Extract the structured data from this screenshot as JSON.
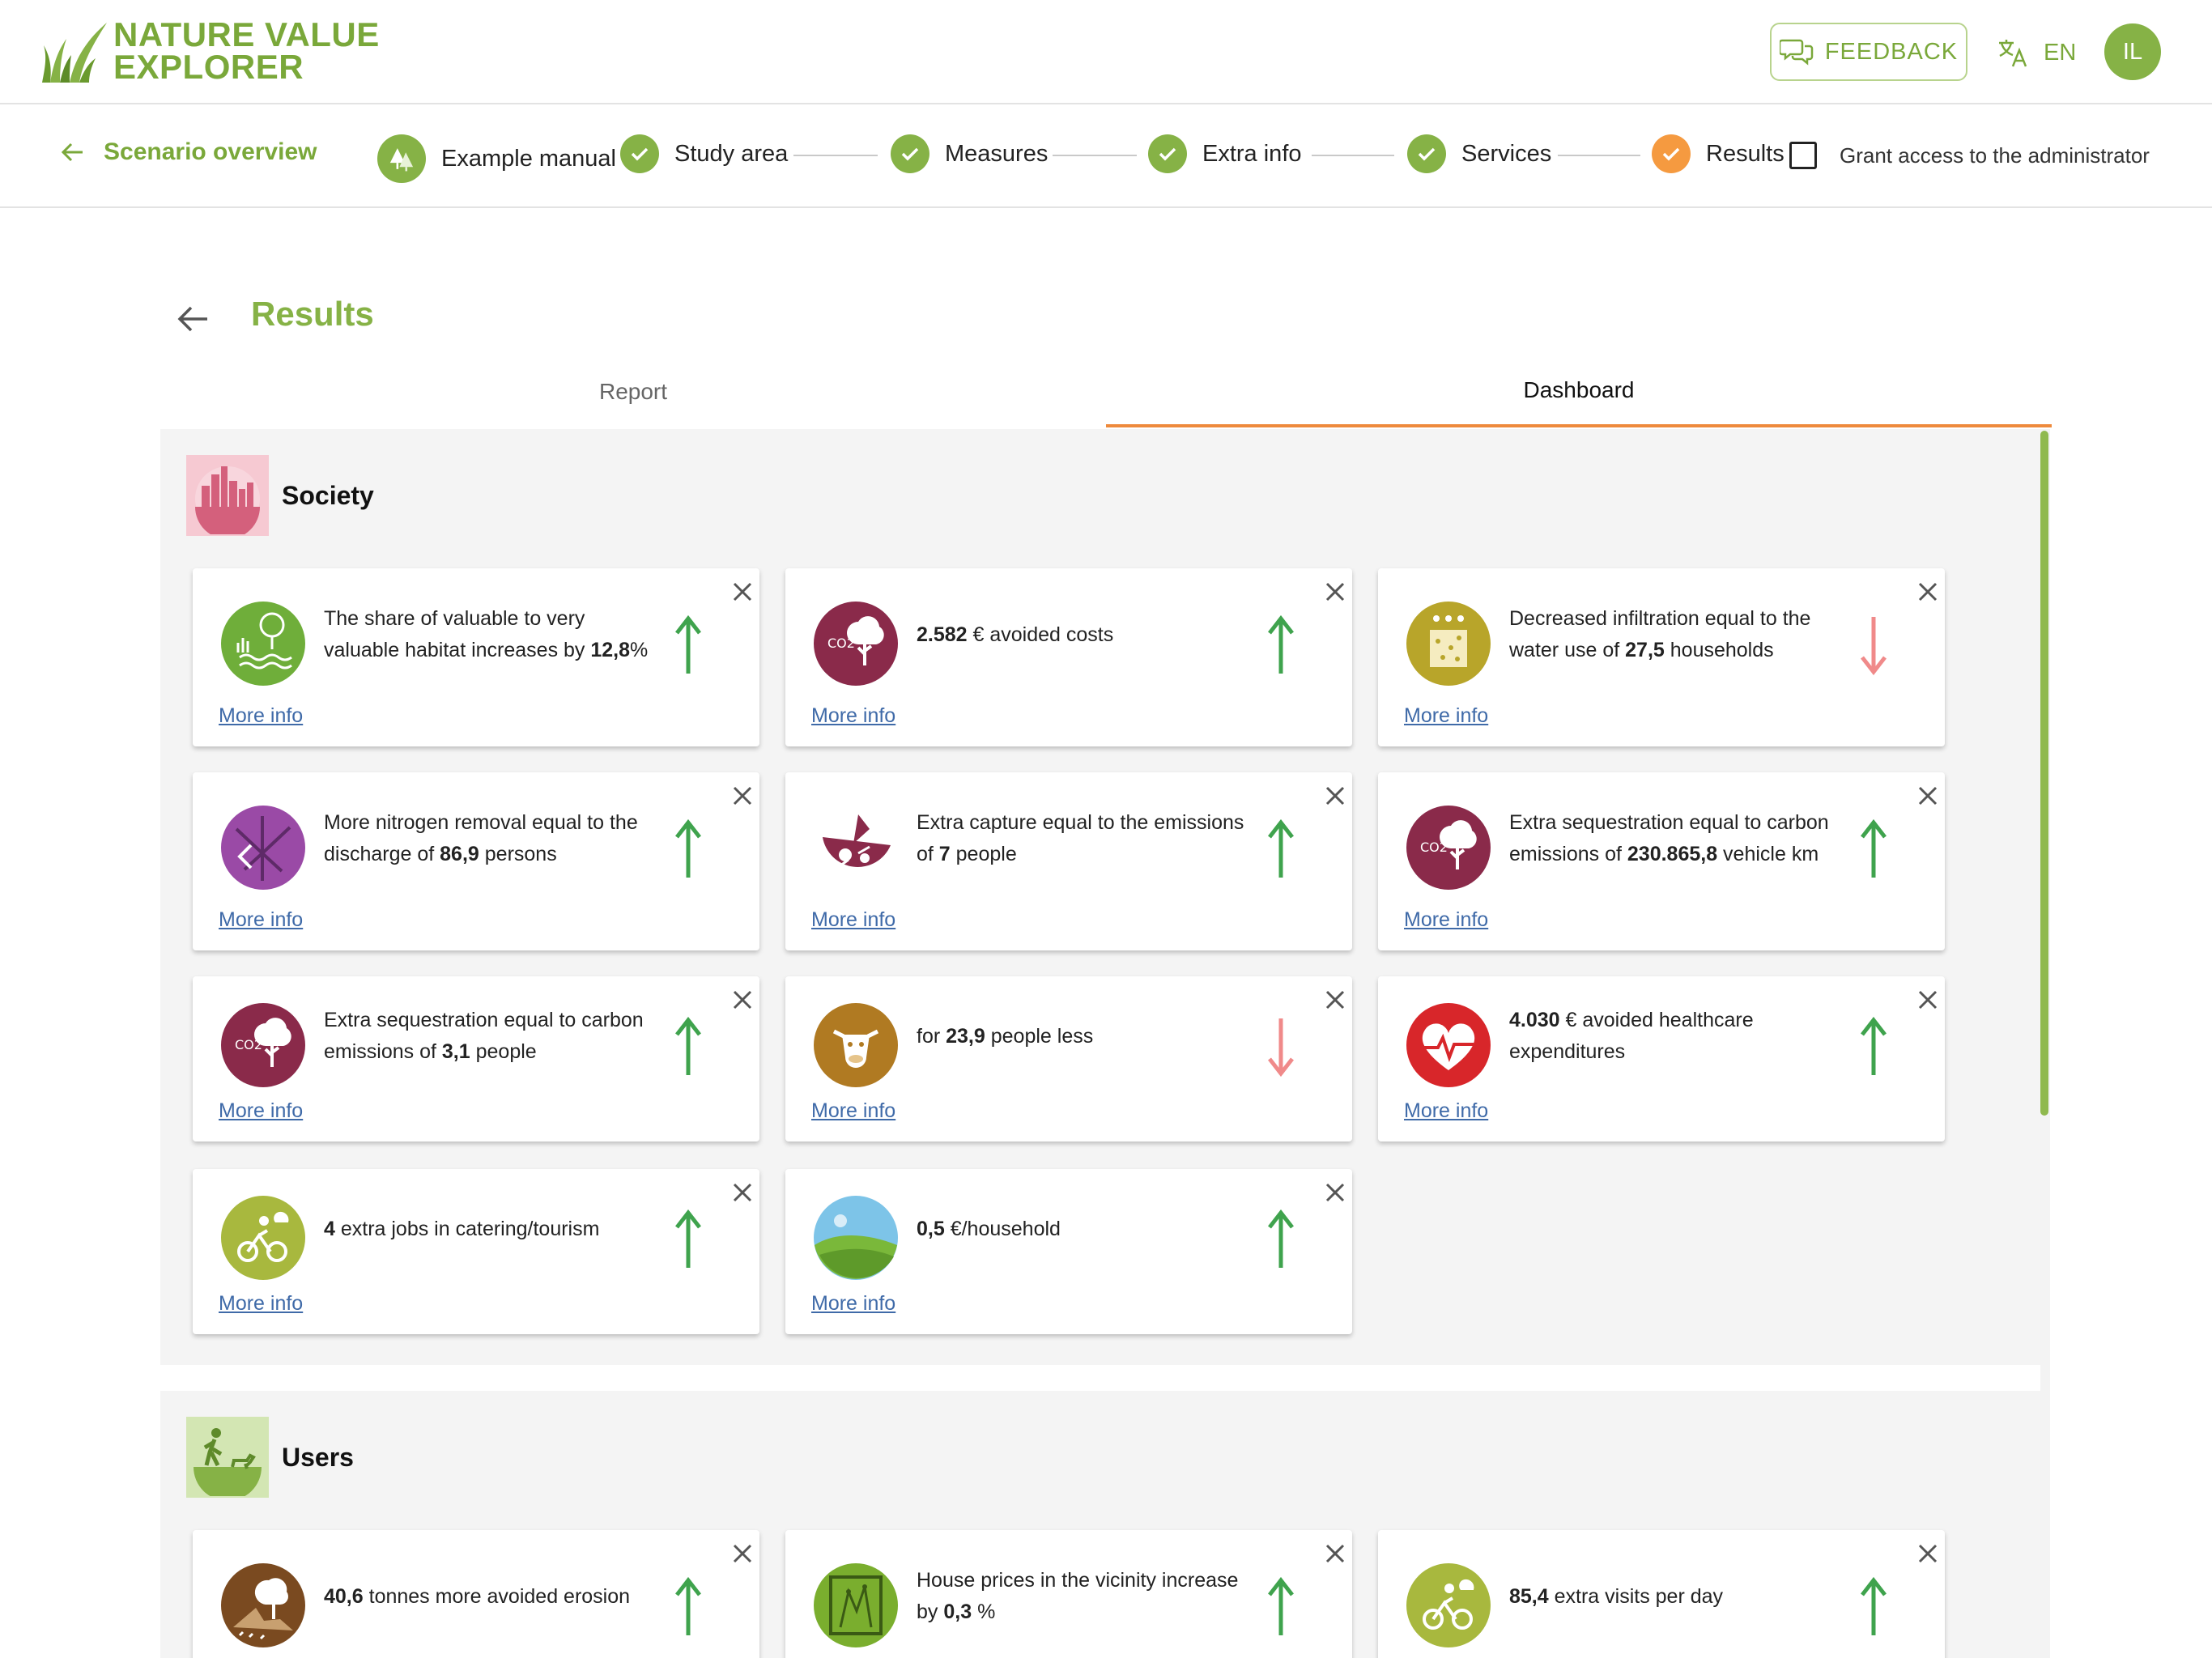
{
  "header": {
    "logo_line1": "NATURE VALUE",
    "logo_line2": "EXPLORER",
    "feedback_label": "FEEDBACK",
    "language": "EN",
    "avatar_initials": "IL"
  },
  "stepper": {
    "back_label": "Scenario overview",
    "steps": [
      {
        "label": "Example manual",
        "state": "home"
      },
      {
        "label": "Study area",
        "state": "done"
      },
      {
        "label": "Measures",
        "state": "done"
      },
      {
        "label": "Extra info",
        "state": "done"
      },
      {
        "label": "Services",
        "state": "done"
      },
      {
        "label": "Results",
        "state": "current"
      }
    ],
    "grant_label": "Grant access to the administrator",
    "grant_checked": false
  },
  "page": {
    "title": "Results",
    "tabs": [
      {
        "label": "Report",
        "active": false
      },
      {
        "label": "Dashboard",
        "active": true
      }
    ]
  },
  "colors": {
    "accent_green": "#86b246",
    "arrow_up": "#3fa34d",
    "arrow_down": "#f08a8a",
    "tab_underline": "#ee8a3c",
    "link": "#3f6aa8"
  },
  "more_info_label": "More info",
  "sections": [
    {
      "title": "Society",
      "icon": "city-icon",
      "cards": [
        {
          "icon": "habitat-icon",
          "trend": "up",
          "parts": [
            {
              "t": "The share of valuable to very valuable habitat increases by "
            },
            {
              "b": "12,8"
            },
            {
              "t": "%"
            }
          ]
        },
        {
          "icon": "co2-tree-icon",
          "trend": "up",
          "parts": [
            {
              "b": "2.582"
            },
            {
              "t": " € avoided costs"
            }
          ]
        },
        {
          "icon": "infiltration-icon",
          "trend": "down",
          "parts": [
            {
              "t": "Decreased infiltration equal to the water use of "
            },
            {
              "b": "27,5"
            },
            {
              "t": " households"
            }
          ]
        },
        {
          "icon": "nitrogen-icon",
          "trend": "up",
          "parts": [
            {
              "t": "More nitrogen removal equal to the discharge of "
            },
            {
              "b": "86,9"
            },
            {
              "t": " persons"
            }
          ]
        },
        {
          "icon": "capture-icon",
          "trend": "up",
          "parts": [
            {
              "t": "Extra capture equal to the emissions of "
            },
            {
              "b": "7"
            },
            {
              "t": " people"
            }
          ]
        },
        {
          "icon": "co2-tree-icon",
          "trend": "up",
          "parts": [
            {
              "t": "Extra sequestration equal to carbon emissions of "
            },
            {
              "b": "230.865,8"
            },
            {
              "t": " vehicle km"
            }
          ]
        },
        {
          "icon": "co2-tree-icon",
          "trend": "up",
          "parts": [
            {
              "t": "Extra sequestration equal to carbon emissions of "
            },
            {
              "b": "3,1"
            },
            {
              "t": " people"
            }
          ]
        },
        {
          "icon": "cow-icon",
          "trend": "down",
          "parts": [
            {
              "t": "for "
            },
            {
              "b": "23,9"
            },
            {
              "t": " people less"
            }
          ]
        },
        {
          "icon": "heart-icon",
          "trend": "up",
          "parts": [
            {
              "b": "4.030"
            },
            {
              "t": " € avoided healthcare expenditures"
            }
          ]
        },
        {
          "icon": "cycling-icon",
          "trend": "up",
          "parts": [
            {
              "b": "4"
            },
            {
              "t": " extra jobs in catering/tourism"
            }
          ]
        },
        {
          "icon": "landscape-icon",
          "trend": "up",
          "parts": [
            {
              "b": "0,5"
            },
            {
              "t": " €/household"
            }
          ]
        }
      ]
    },
    {
      "title": "Users",
      "icon": "walker-dog-icon",
      "cards": [
        {
          "icon": "erosion-icon",
          "trend": "up",
          "parts": [
            {
              "b": "40,6"
            },
            {
              "t": " tonnes more avoided erosion"
            }
          ]
        },
        {
          "icon": "house-price-icon",
          "trend": "up",
          "parts": [
            {
              "t": "House prices in the vicinity increase by "
            },
            {
              "b": "0,3"
            },
            {
              "t": " %"
            }
          ]
        },
        {
          "icon": "cycling-icon",
          "trend": "up",
          "parts": [
            {
              "b": "85,4"
            },
            {
              "t": " extra visits per day"
            }
          ]
        }
      ]
    }
  ]
}
